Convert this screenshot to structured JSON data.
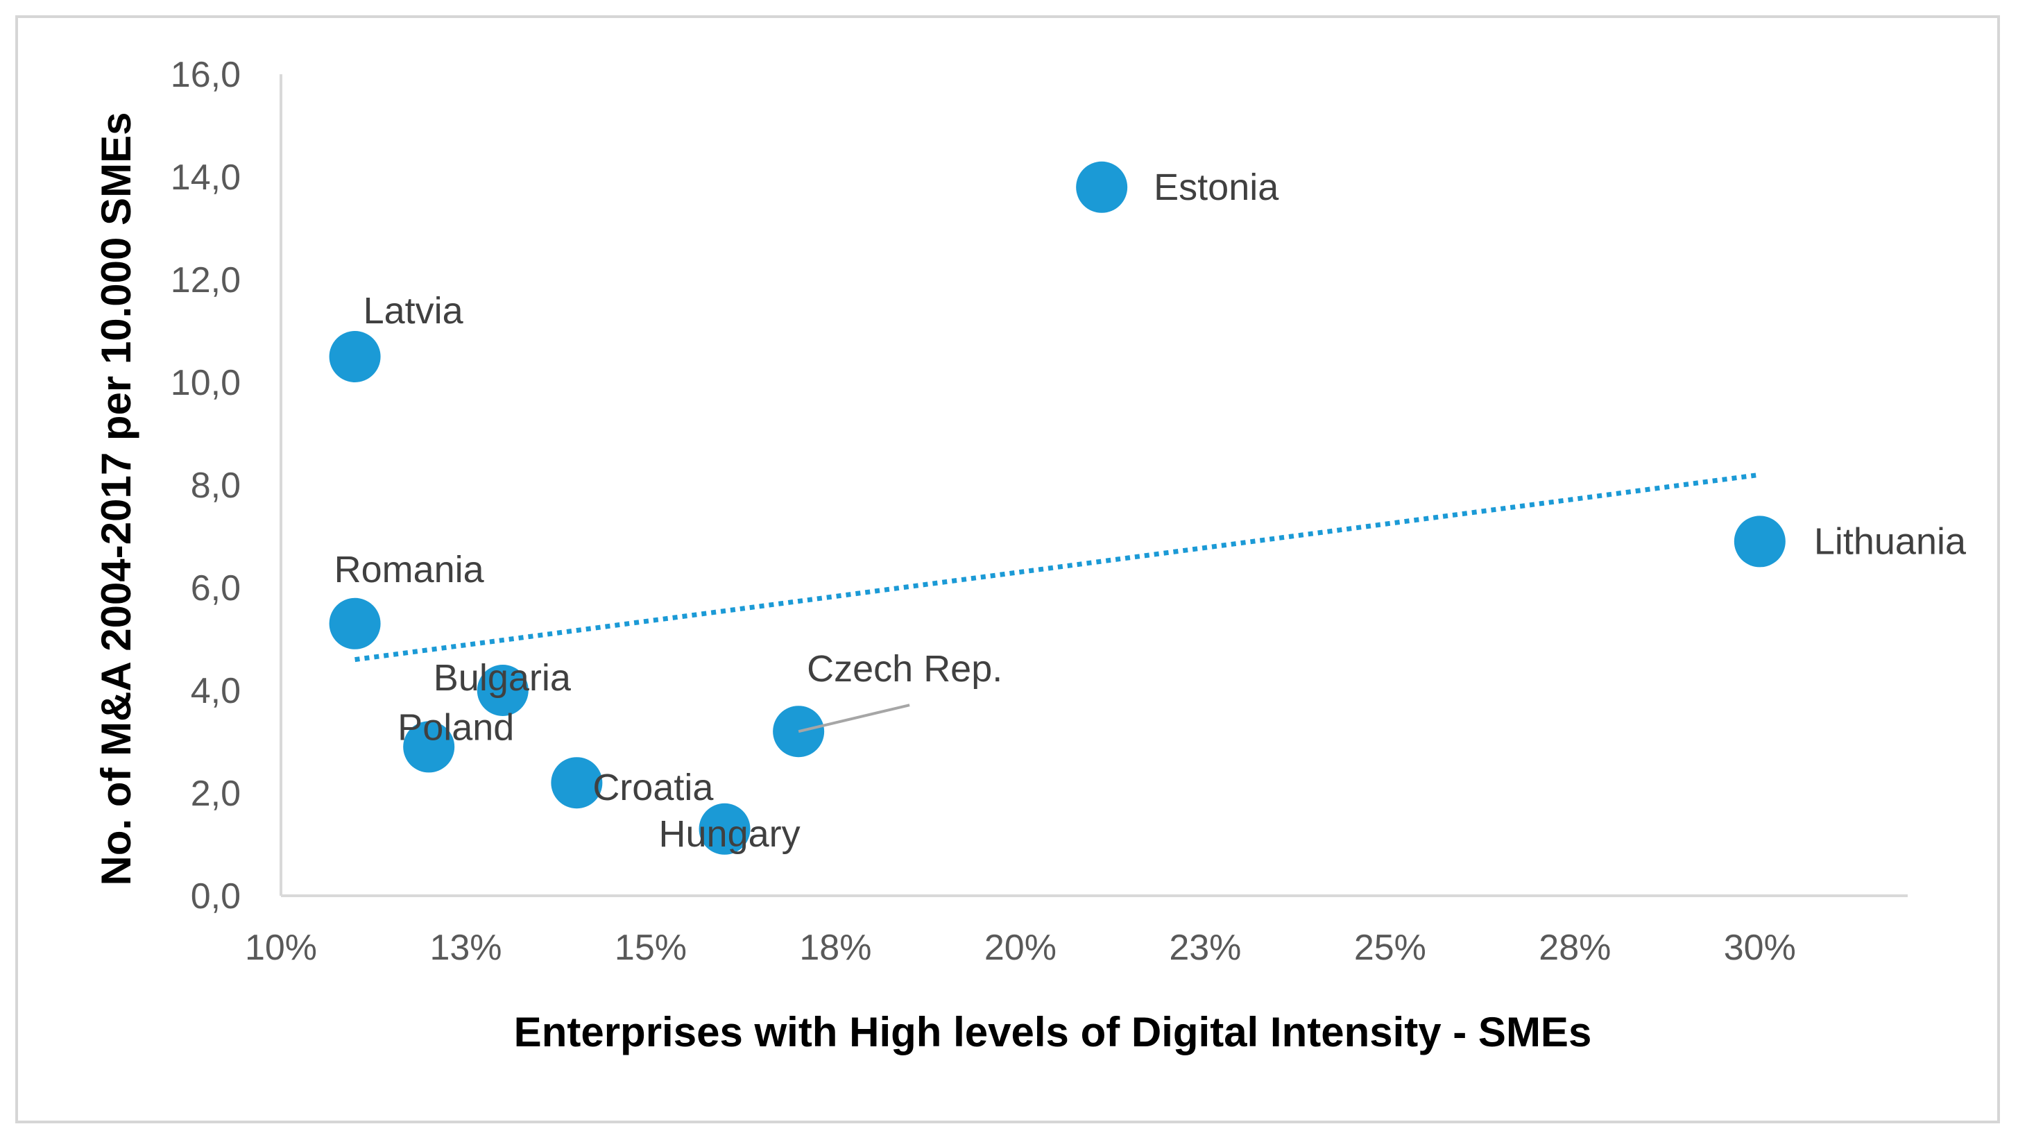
{
  "chart_data": {
    "type": "scatter",
    "title": "",
    "xlabel": "Enterprises with High levels of Digital Intensity - SMEs",
    "ylabel": "No. of M&A 2004-2017 per 10.000 SMEs",
    "xlim": [
      10,
      32
    ],
    "ylim": [
      0,
      16
    ],
    "x_ticks": [
      10,
      12.5,
      15,
      17.5,
      20,
      22.5,
      25,
      27.5,
      30
    ],
    "x_tick_labels": [
      "10%",
      "13%",
      "15%",
      "18%",
      "20%",
      "23%",
      "25%",
      "28%",
      "30%"
    ],
    "y_ticks": [
      0,
      2,
      4,
      6,
      8,
      10,
      12,
      14,
      16
    ],
    "y_tick_labels": [
      "0,0",
      "2,0",
      "4,0",
      "6,0",
      "8,0",
      "10,0",
      "12,0",
      "14,0",
      "16,0"
    ],
    "grid": false,
    "legend": "none",
    "marker_color": "#1b9ad6",
    "points": [
      {
        "label": "Estonia",
        "x": 21.1,
        "y": 13.8
      },
      {
        "label": "Latvia",
        "x": 11.0,
        "y": 10.5
      },
      {
        "label": "Lithuania",
        "x": 30.0,
        "y": 6.9
      },
      {
        "label": "Romania",
        "x": 11.0,
        "y": 5.3
      },
      {
        "label": "Bulgaria",
        "x": 13.0,
        "y": 4.0
      },
      {
        "label": "Poland",
        "x": 12.0,
        "y": 2.9
      },
      {
        "label": "Czech Rep.",
        "x": 17.0,
        "y": 3.2
      },
      {
        "label": "Croatia",
        "x": 14.0,
        "y": 2.2
      },
      {
        "label": "Hungary",
        "x": 16.0,
        "y": 1.3
      }
    ],
    "trendline": {
      "style": "dotted",
      "color": "#1b9ad6",
      "x": [
        11.0,
        30.0
      ],
      "y": [
        4.6,
        8.2
      ]
    }
  }
}
